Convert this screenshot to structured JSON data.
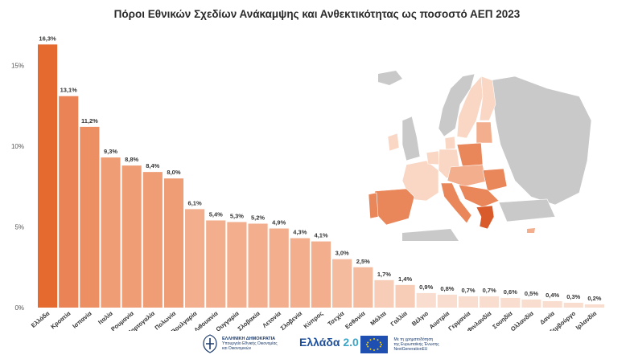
{
  "title": "Πόροι Εθνικών Σχεδίων Ανάκαμψης και Ανθεκτικότητας ως ποσοστό ΑΕΠ 2023",
  "chart_data": {
    "type": "bar",
    "title": "Πόροι Εθνικών Σχεδίων Ανάκαμψης και Ανθεκτικότητας ως ποσοστό ΑΕΠ 2023",
    "categories": [
      "Ελλάδα",
      "Κροατία",
      "Ισπανία",
      "Ιταλία",
      "Ρουμανία",
      "Πορτογαλία",
      "Πολωνία",
      "Βουλγαρία",
      "Λιθουανία",
      "Ουγγαρία",
      "Σλοβακία",
      "Λετονία",
      "Σλοβενία",
      "Κύπρος",
      "Τσεχία",
      "Εσθονία",
      "Μάλτα",
      "Γαλλία",
      "Βέλγιο",
      "Αυστρία",
      "Γερμανία",
      "Φινλανδία",
      "Σουηδία",
      "Ολλανδία",
      "Δανία",
      "Λουξεμβούργο",
      "Ιρλανδία"
    ],
    "values": [
      16.3,
      13.1,
      11.2,
      9.3,
      8.8,
      8.4,
      8.0,
      6.1,
      5.4,
      5.3,
      5.2,
      4.9,
      4.3,
      4.1,
      3.0,
      2.5,
      1.7,
      1.4,
      0.9,
      0.8,
      0.7,
      0.7,
      0.6,
      0.5,
      0.4,
      0.3,
      0.2
    ],
    "value_labels": [
      "16,3%",
      "13,1%",
      "11,2%",
      "9,3%",
      "8,8%",
      "8,4%",
      "8,0%",
      "6,1%",
      "5,4%",
      "5,3%",
      "5,2%",
      "4,9%",
      "4,3%",
      "4,1%",
      "3,0%",
      "2,5%",
      "1,7%",
      "1,4%",
      "0,9%",
      "0,8%",
      "0,7%",
      "0,7%",
      "0,6%",
      "0,5%",
      "0,4%",
      "0,3%",
      "0,2%"
    ],
    "y_ticks": [
      0,
      5,
      10,
      15
    ],
    "y_tick_labels": [
      "0%",
      "5%",
      "10%",
      "15%"
    ],
    "ylim": [
      0,
      17
    ],
    "xlabel": "",
    "ylabel": "",
    "grid": false,
    "colors": [
      "#e46a30",
      "#ea8456",
      "#ec8f62",
      "#ef9d74",
      "#ef9d74",
      "#ef9d74",
      "#ef9d74",
      "#f2ae8d",
      "#f2ae8d",
      "#f2ae8d",
      "#f2ae8d",
      "#f2ae8d",
      "#f2ae8d",
      "#f2ae8d",
      "#f4bb9e",
      "#f4bb9e",
      "#f7cdb7",
      "#f7cdb7",
      "#f9ddcf",
      "#f9ddcf",
      "#f9ddcf",
      "#f9ddcf",
      "#f9ddcf",
      "#f9ddcf",
      "#f9ddcf",
      "#f9ddcf",
      "#f9ddcf"
    ]
  },
  "map": {
    "icon": "europe-map-icon",
    "colors": {
      "greece": "#d95a2a",
      "dark": "#e9875a",
      "mid": "#f2ae8d",
      "light": "#f9d7c4",
      "non_eu": "#c9c9c9"
    }
  },
  "footer": {
    "ministry_title": "ΕΛΛΗΝΙΚΗ ΔΗΜΟΚΡΑΤΙΑ",
    "ministry_line1": "Υπουργείο Εθνικής Οικονομίας",
    "ministry_line2": "και Οικονομικών",
    "greece20_word": "Ελλάδα",
    "greece20_num": "2.0",
    "eu_line1": "Με τη χρηματοδότηση",
    "eu_line2": "της Ευρωπαϊκής Ένωσης",
    "eu_line3": "NextGenerationEU"
  }
}
